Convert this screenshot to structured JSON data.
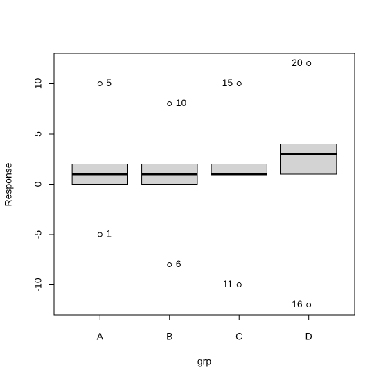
{
  "chart_data": {
    "type": "box",
    "xlabel": "grp",
    "ylabel": "Response",
    "categories": [
      "A",
      "B",
      "C",
      "D"
    ],
    "boxes": [
      {
        "q1": 0,
        "median": 1,
        "q3": 2,
        "outliers": [
          {
            "value": 10,
            "label": "5"
          },
          {
            "value": -5,
            "label": "1"
          }
        ]
      },
      {
        "q1": 0,
        "median": 1,
        "q3": 2,
        "outliers": [
          {
            "value": 8,
            "label": "10"
          },
          {
            "value": -8,
            "label": "6"
          }
        ]
      },
      {
        "q1": 1,
        "median": 1,
        "q3": 2,
        "outliers": [
          {
            "value": 10,
            "label": "15"
          },
          {
            "value": -10,
            "label": "11"
          }
        ]
      },
      {
        "q1": 1,
        "median": 3,
        "q3": 4,
        "outliers": [
          {
            "value": 12,
            "label": "20"
          },
          {
            "value": -12,
            "label": "16"
          }
        ]
      }
    ],
    "color": "#d3d3d3",
    "ylim": [
      -13,
      13
    ],
    "yticks": [
      -10,
      -5,
      0,
      5,
      10
    ]
  }
}
